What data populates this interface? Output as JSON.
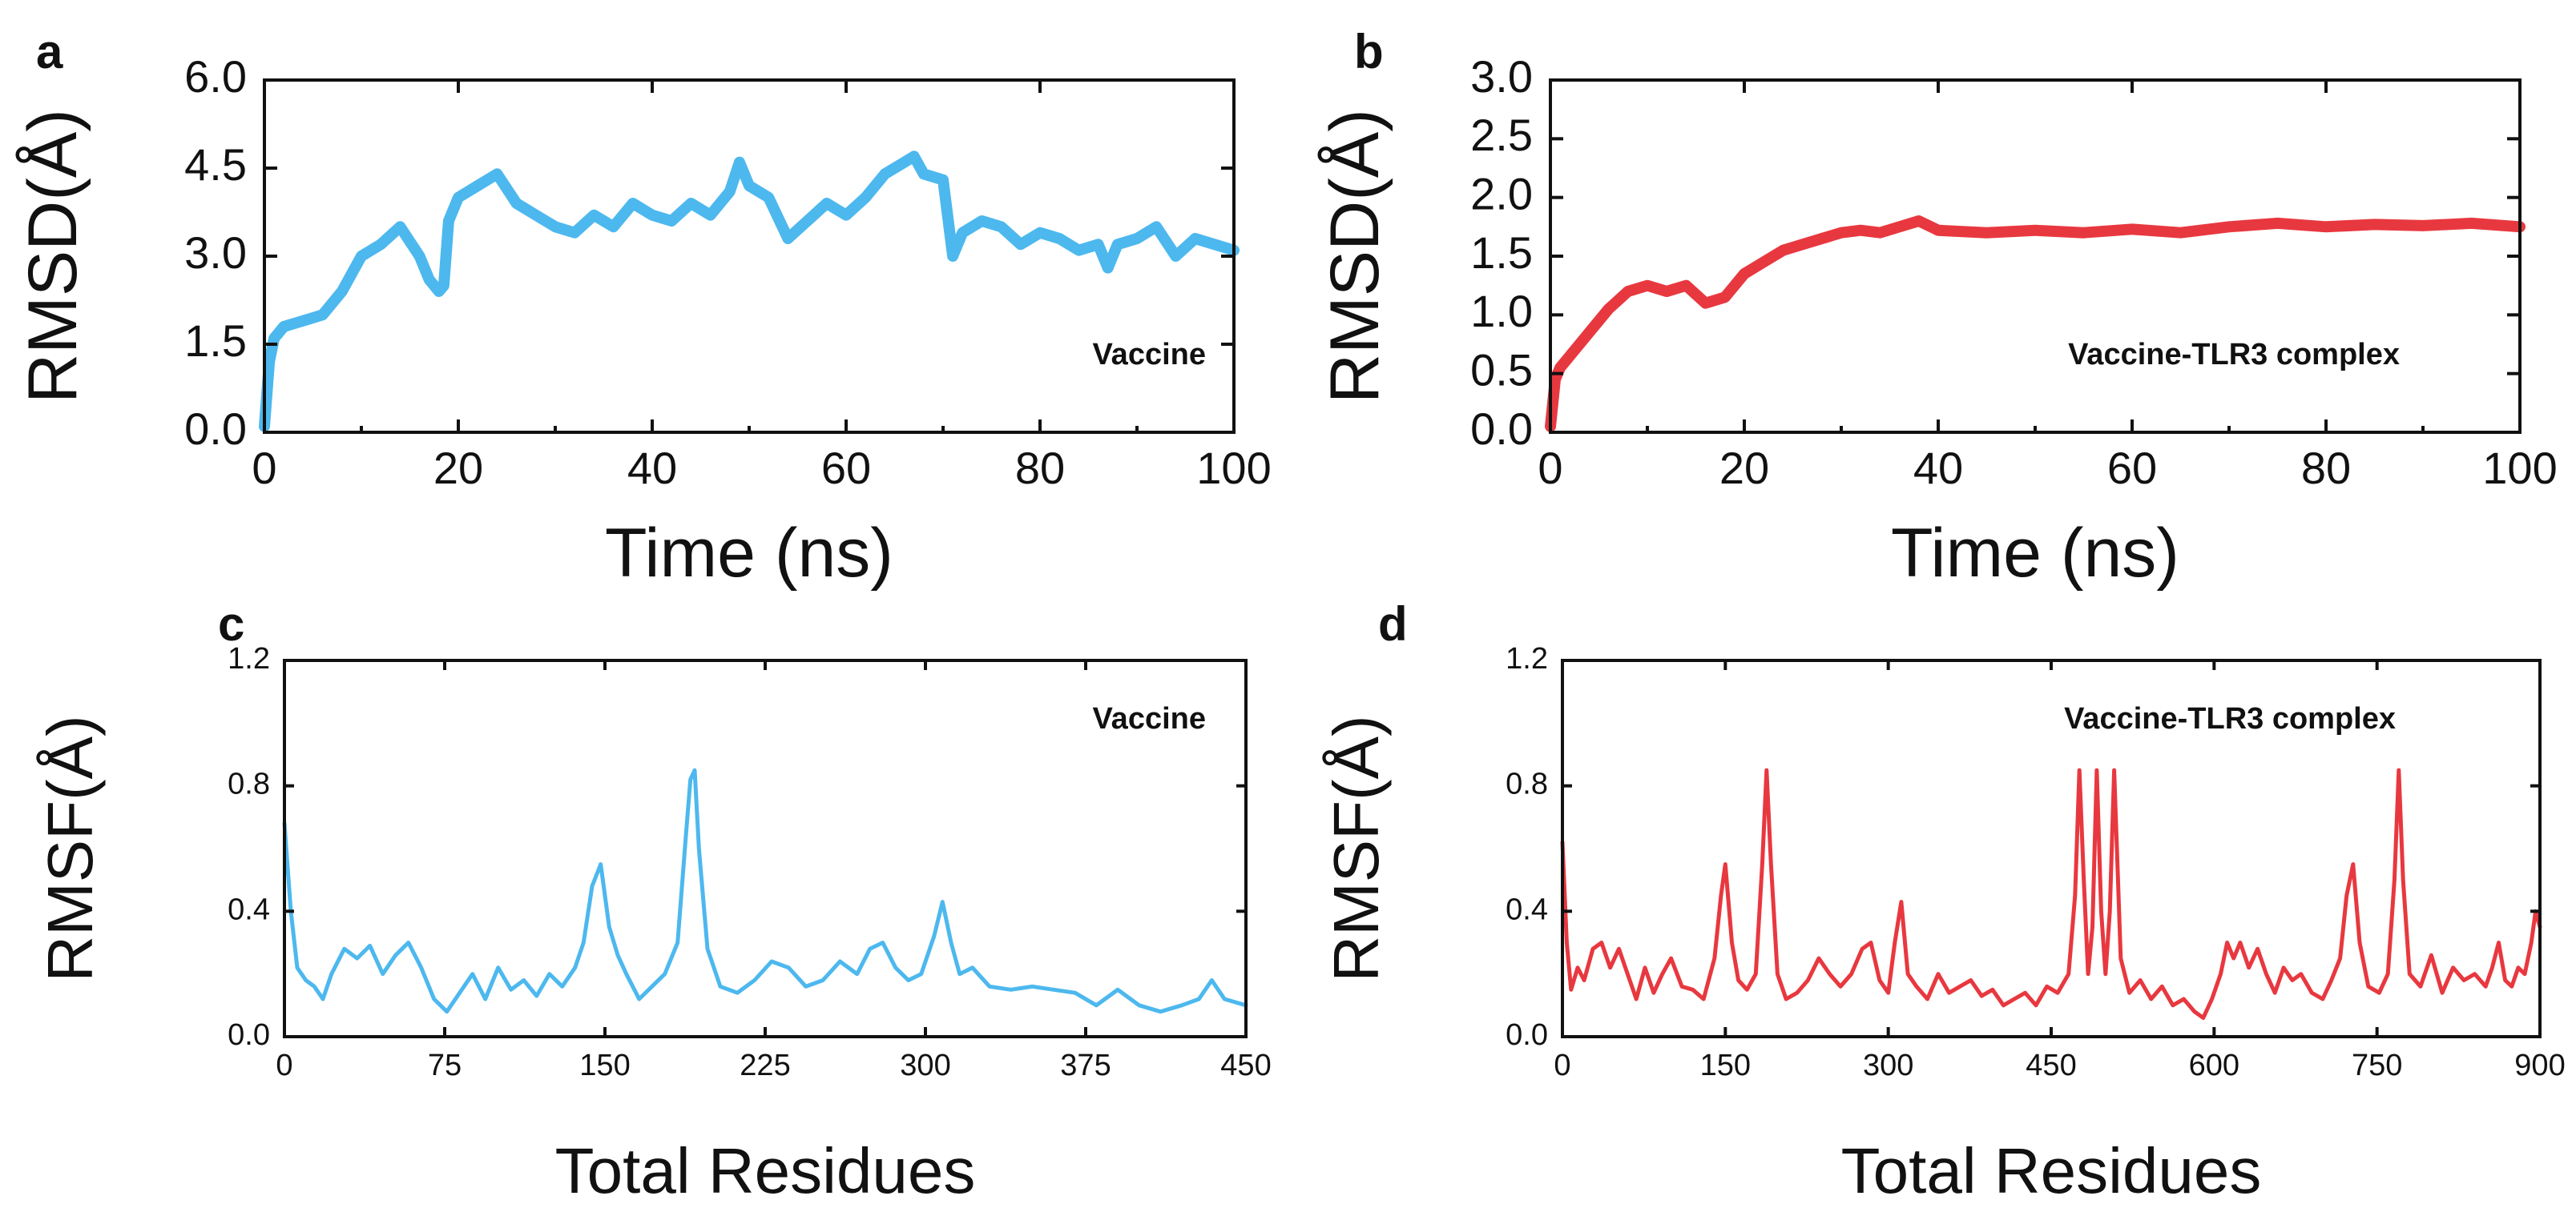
{
  "colors": {
    "vaccine": "#4db8ee",
    "complex": "#e8383f"
  },
  "chart_data": [
    {
      "id": "a",
      "type": "line",
      "panel_label": "a",
      "annotation": "Vaccine",
      "xlabel": "Time (ns)",
      "ylabel": "RMSD(Å)",
      "xlim": [
        0,
        100
      ],
      "ylim": [
        0,
        6
      ],
      "xticks": [
        0,
        20,
        40,
        60,
        80,
        100
      ],
      "xtick_labels": [
        "0",
        "20",
        "40",
        "60",
        "80",
        "100"
      ],
      "yticks": [
        0,
        1.5,
        3,
        4.5,
        6
      ],
      "ytick_labels": [
        "0.0",
        "1.5",
        "3.0",
        "4.5",
        "6.0"
      ],
      "series": [
        {
          "name": "Vaccine",
          "color": "#4db8ee",
          "x": [
            0,
            0.5,
            1,
            2,
            4,
            6,
            8,
            10,
            12,
            14,
            16,
            17,
            18,
            18.5,
            19,
            20,
            22,
            24,
            26,
            28,
            30,
            32,
            34,
            36,
            38,
            40,
            42,
            44,
            46,
            48,
            49,
            50,
            52,
            54,
            56,
            58,
            60,
            62,
            64,
            66,
            67,
            68,
            70,
            71,
            72,
            74,
            76,
            78,
            80,
            82,
            84,
            86,
            87,
            88,
            90,
            92,
            94,
            96,
            98,
            100
          ],
          "y": [
            0.1,
            1.2,
            1.6,
            1.8,
            1.9,
            2.0,
            2.4,
            3.0,
            3.2,
            3.5,
            3.0,
            2.6,
            2.4,
            2.5,
            3.6,
            4.0,
            4.2,
            4.4,
            3.9,
            3.7,
            3.5,
            3.4,
            3.7,
            3.5,
            3.9,
            3.7,
            3.6,
            3.9,
            3.7,
            4.1,
            4.6,
            4.2,
            4.0,
            3.3,
            3.6,
            3.9,
            3.7,
            4.0,
            4.4,
            4.6,
            4.7,
            4.4,
            4.3,
            3.0,
            3.4,
            3.6,
            3.5,
            3.2,
            3.4,
            3.3,
            3.1,
            3.2,
            2.8,
            3.2,
            3.3,
            3.5,
            3.0,
            3.3,
            3.2,
            3.1
          ]
        }
      ]
    },
    {
      "id": "b",
      "type": "line",
      "panel_label": "b",
      "annotation": "Vaccine-TLR3 complex",
      "xlabel": "Time (ns)",
      "ylabel": "RMSD(Å)",
      "xlim": [
        0,
        100
      ],
      "ylim": [
        0,
        3
      ],
      "xticks": [
        0,
        20,
        40,
        60,
        80,
        100
      ],
      "xtick_labels": [
        "0",
        "20",
        "40",
        "60",
        "80",
        "100"
      ],
      "yticks": [
        0,
        0.5,
        1,
        1.5,
        2,
        2.5,
        3
      ],
      "ytick_labels": [
        "0.0",
        "0.5",
        "1.0",
        "1.5",
        "2.0",
        "2.5",
        "3.0"
      ],
      "series": [
        {
          "name": "Vaccine-TLR3 complex",
          "color": "#e8383f",
          "x": [
            0,
            0.5,
            1,
            2,
            4,
            6,
            8,
            10,
            12,
            14,
            16,
            18,
            20,
            22,
            24,
            26,
            28,
            30,
            32,
            34,
            36,
            38,
            40,
            45,
            50,
            55,
            60,
            65,
            70,
            75,
            80,
            85,
            90,
            95,
            100
          ],
          "y": [
            0.05,
            0.45,
            0.55,
            0.65,
            0.85,
            1.05,
            1.2,
            1.25,
            1.2,
            1.25,
            1.1,
            1.15,
            1.35,
            1.45,
            1.55,
            1.6,
            1.65,
            1.7,
            1.72,
            1.7,
            1.75,
            1.8,
            1.72,
            1.7,
            1.72,
            1.7,
            1.73,
            1.7,
            1.75,
            1.78,
            1.75,
            1.77,
            1.76,
            1.78,
            1.75
          ]
        }
      ]
    },
    {
      "id": "c",
      "type": "line",
      "panel_label": "c",
      "annotation": "Vaccine",
      "xlabel": "Total Residues",
      "ylabel": "RMSF(Å)",
      "xlim": [
        0,
        450
      ],
      "ylim": [
        0,
        1.2
      ],
      "xticks": [
        0,
        75,
        150,
        225,
        300,
        375,
        450
      ],
      "xtick_labels": [
        "0",
        "75",
        "150",
        "225",
        "300",
        "375",
        "450"
      ],
      "yticks": [
        0,
        0.4,
        0.8,
        1.2
      ],
      "ytick_labels": [
        "0.0",
        "0.4",
        "0.8",
        "1.2"
      ],
      "series": [
        {
          "name": "Vaccine",
          "color": "#4db8ee",
          "x": [
            0,
            3,
            6,
            10,
            14,
            18,
            22,
            28,
            34,
            40,
            46,
            52,
            58,
            64,
            70,
            76,
            82,
            88,
            94,
            100,
            106,
            112,
            118,
            124,
            130,
            136,
            140,
            144,
            148,
            152,
            156,
            160,
            166,
            172,
            178,
            184,
            188,
            190,
            192,
            194,
            198,
            204,
            212,
            220,
            228,
            236,
            244,
            252,
            260,
            268,
            274,
            280,
            286,
            292,
            298,
            304,
            308,
            312,
            316,
            322,
            330,
            340,
            350,
            360,
            370,
            380,
            390,
            400,
            410,
            420,
            428,
            434,
            440,
            450
          ],
          "y": [
            0.68,
            0.4,
            0.22,
            0.18,
            0.16,
            0.12,
            0.2,
            0.28,
            0.25,
            0.29,
            0.2,
            0.26,
            0.3,
            0.22,
            0.12,
            0.08,
            0.14,
            0.2,
            0.12,
            0.22,
            0.15,
            0.18,
            0.13,
            0.2,
            0.16,
            0.22,
            0.3,
            0.48,
            0.55,
            0.35,
            0.26,
            0.2,
            0.12,
            0.16,
            0.2,
            0.3,
            0.65,
            0.82,
            0.85,
            0.6,
            0.28,
            0.16,
            0.14,
            0.18,
            0.24,
            0.22,
            0.16,
            0.18,
            0.24,
            0.2,
            0.28,
            0.3,
            0.22,
            0.18,
            0.2,
            0.32,
            0.43,
            0.3,
            0.2,
            0.22,
            0.16,
            0.15,
            0.16,
            0.15,
            0.14,
            0.1,
            0.15,
            0.1,
            0.08,
            0.1,
            0.12,
            0.18,
            0.12,
            0.1
          ]
        }
      ]
    },
    {
      "id": "d",
      "type": "line",
      "panel_label": "d",
      "annotation": "Vaccine-TLR3 complex",
      "xlabel": "Total Residues",
      "ylabel": "RMSF(Å)",
      "xlim": [
        0,
        900
      ],
      "ylim": [
        0,
        1.2
      ],
      "xticks": [
        0,
        150,
        300,
        450,
        600,
        750,
        900
      ],
      "xtick_labels": [
        "0",
        "150",
        "300",
        "450",
        "600",
        "750",
        "900"
      ],
      "yticks": [
        0,
        0.4,
        0.8,
        1.2
      ],
      "ytick_labels": [
        "0.0",
        "0.4",
        "0.8",
        "1.2"
      ],
      "series": [
        {
          "name": "Vaccine-TLR3 complex",
          "color": "#e8383f",
          "x": [
            0,
            4,
            8,
            14,
            20,
            28,
            36,
            44,
            52,
            60,
            68,
            76,
            84,
            92,
            100,
            110,
            120,
            130,
            140,
            146,
            150,
            156,
            162,
            170,
            178,
            184,
            188,
            192,
            198,
            206,
            216,
            226,
            236,
            246,
            256,
            266,
            276,
            284,
            292,
            300,
            306,
            312,
            318,
            326,
            336,
            346,
            356,
            366,
            376,
            386,
            396,
            406,
            416,
            426,
            436,
            446,
            456,
            466,
            472,
            476,
            480,
            484,
            488,
            492,
            496,
            500,
            504,
            508,
            514,
            522,
            532,
            542,
            552,
            562,
            572,
            582,
            590,
            598,
            606,
            612,
            618,
            624,
            632,
            640,
            648,
            656,
            664,
            672,
            680,
            690,
            700,
            708,
            716,
            722,
            728,
            734,
            742,
            752,
            760,
            766,
            770,
            774,
            780,
            790,
            800,
            810,
            820,
            830,
            840,
            850,
            856,
            862,
            868,
            874,
            880,
            886,
            892,
            896,
            900
          ],
          "y": [
            0.62,
            0.3,
            0.15,
            0.22,
            0.18,
            0.28,
            0.3,
            0.22,
            0.28,
            0.2,
            0.12,
            0.22,
            0.14,
            0.2,
            0.25,
            0.16,
            0.15,
            0.12,
            0.25,
            0.45,
            0.55,
            0.3,
            0.18,
            0.15,
            0.2,
            0.55,
            0.85,
            0.55,
            0.2,
            0.12,
            0.14,
            0.18,
            0.25,
            0.2,
            0.16,
            0.2,
            0.28,
            0.3,
            0.18,
            0.14,
            0.3,
            0.43,
            0.2,
            0.16,
            0.12,
            0.2,
            0.14,
            0.16,
            0.18,
            0.13,
            0.15,
            0.1,
            0.12,
            0.14,
            0.1,
            0.16,
            0.14,
            0.2,
            0.45,
            0.85,
            0.5,
            0.2,
            0.35,
            0.85,
            0.4,
            0.2,
            0.4,
            0.85,
            0.25,
            0.14,
            0.18,
            0.12,
            0.16,
            0.1,
            0.12,
            0.08,
            0.06,
            0.12,
            0.2,
            0.3,
            0.25,
            0.3,
            0.22,
            0.28,
            0.2,
            0.14,
            0.22,
            0.18,
            0.2,
            0.14,
            0.12,
            0.18,
            0.25,
            0.45,
            0.55,
            0.3,
            0.16,
            0.14,
            0.2,
            0.5,
            0.85,
            0.5,
            0.2,
            0.16,
            0.26,
            0.14,
            0.22,
            0.18,
            0.2,
            0.16,
            0.22,
            0.3,
            0.18,
            0.16,
            0.22,
            0.2,
            0.3,
            0.4,
            0.35
          ]
        }
      ]
    }
  ]
}
